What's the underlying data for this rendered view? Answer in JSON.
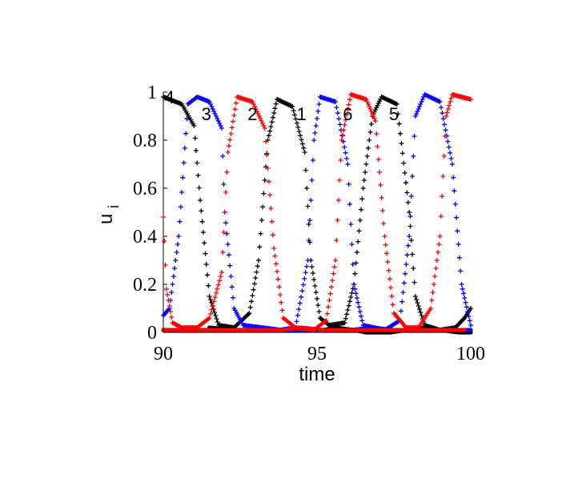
{
  "chart_data": {
    "type": "scatter",
    "xlabel": "time",
    "ylabel": "u",
    "ylabel_subscript": "i",
    "xlim": [
      90,
      100
    ],
    "ylim": [
      0,
      1
    ],
    "xticks": [
      90,
      95,
      100
    ],
    "yticks": [
      0,
      0.2,
      0.4,
      0.6,
      0.8,
      1
    ],
    "xtick_labels": [
      "90",
      "95",
      "100"
    ],
    "ytick_labels": [
      "0",
      "0.2",
      "0.4",
      "0.6",
      "0.8",
      "1"
    ],
    "grid": false,
    "annotations": [
      {
        "text": "4",
        "x": 90.2,
        "y": 0.98
      },
      {
        "text": "3",
        "x": 91.4,
        "y": 0.91
      },
      {
        "text": "2",
        "x": 92.9,
        "y": 0.91
      },
      {
        "text": "1",
        "x": 94.5,
        "y": 0.91
      },
      {
        "text": "6",
        "x": 96.0,
        "y": 0.91
      },
      {
        "text": "5",
        "x": 97.5,
        "y": 0.91
      }
    ],
    "series": [
      {
        "color": "#000000",
        "marker": "+",
        "points": [
          [
            90.0,
            0.98
          ],
          [
            90.6,
            0.95
          ],
          [
            91.0,
            0.86
          ],
          [
            91.2,
            0.55
          ],
          [
            91.5,
            0.15
          ],
          [
            91.8,
            0.03
          ],
          [
            92.3,
            0.02
          ],
          [
            92.8,
            0.08
          ],
          [
            93.1,
            0.3
          ],
          [
            93.4,
            0.8
          ],
          [
            93.7,
            0.97
          ],
          [
            94.2,
            0.94
          ],
          [
            94.6,
            0.75
          ],
          [
            94.8,
            0.3
          ],
          [
            95.1,
            0.06
          ],
          [
            95.4,
            0.03
          ],
          [
            95.9,
            0.04
          ],
          [
            96.2,
            0.2
          ],
          [
            96.5,
            0.6
          ],
          [
            96.8,
            0.9
          ],
          [
            97.1,
            0.98
          ],
          [
            97.6,
            0.95
          ],
          [
            98.0,
            0.5
          ],
          [
            98.2,
            0.15
          ],
          [
            98.5,
            0.03
          ],
          [
            99.0,
            0.01
          ],
          [
            99.5,
            0.02
          ],
          [
            99.8,
            0.06
          ],
          [
            100.0,
            0.1
          ]
        ]
      },
      {
        "color": "#000000",
        "marker": "*",
        "points": [
          [
            91.5,
            0.02
          ],
          [
            92.3,
            0.01
          ],
          [
            92.9,
            0.01
          ],
          [
            93.6,
            0.01
          ],
          [
            94.2,
            0.01
          ],
          [
            94.6,
            0.01
          ],
          [
            95.2,
            0.01
          ],
          [
            95.6,
            0.02
          ],
          [
            96.2,
            0.01
          ],
          [
            96.6,
            0.0
          ],
          [
            97.4,
            0.0
          ],
          [
            97.9,
            0.01
          ],
          [
            98.6,
            0.02
          ],
          [
            99.0,
            0.01
          ],
          [
            99.6,
            0.0
          ],
          [
            100.0,
            0.0
          ]
        ]
      },
      {
        "color": "#0000ff",
        "marker": "+",
        "points": [
          [
            90.0,
            0.07
          ],
          [
            90.2,
            0.1
          ],
          [
            90.5,
            0.4
          ],
          [
            90.8,
            0.95
          ],
          [
            91.1,
            0.98
          ],
          [
            91.5,
            0.96
          ],
          [
            91.9,
            0.85
          ],
          [
            92.0,
            0.5
          ],
          [
            92.3,
            0.1
          ],
          [
            92.6,
            0.03
          ],
          [
            93.2,
            0.02
          ],
          [
            93.8,
            0.01
          ],
          [
            94.3,
            0.02
          ],
          [
            94.7,
            0.3
          ],
          [
            94.9,
            0.8
          ],
          [
            95.1,
            0.98
          ],
          [
            95.6,
            0.96
          ],
          [
            96.0,
            0.7
          ],
          [
            96.2,
            0.2
          ],
          [
            96.5,
            0.03
          ],
          [
            97.2,
            0.01
          ],
          [
            97.7,
            0.05
          ],
          [
            98.0,
            0.4
          ],
          [
            98.2,
            0.9
          ],
          [
            98.5,
            0.99
          ],
          [
            99.0,
            0.96
          ],
          [
            99.4,
            0.7
          ],
          [
            99.7,
            0.2
          ],
          [
            100.0,
            0.03
          ]
        ]
      },
      {
        "color": "#0000ff",
        "marker": "*",
        "points": [
          [
            90.0,
            0.01
          ],
          [
            90.8,
            0.01
          ],
          [
            91.5,
            0.01
          ],
          [
            92.2,
            0.01
          ],
          [
            92.9,
            0.01
          ],
          [
            93.5,
            0.01
          ],
          [
            94.1,
            0.01
          ],
          [
            94.7,
            0.01
          ],
          [
            95.4,
            0.01
          ],
          [
            96.1,
            0.01
          ],
          [
            96.8,
            0.02
          ],
          [
            97.5,
            0.01
          ],
          [
            98.1,
            0.01
          ],
          [
            98.8,
            0.01
          ],
          [
            99.4,
            0.01
          ],
          [
            100.0,
            0.01
          ]
        ]
      },
      {
        "color": "#ff0000",
        "marker": "+",
        "points": [
          [
            90.0,
            0.48
          ],
          [
            90.1,
            0.18
          ],
          [
            90.3,
            0.04
          ],
          [
            90.6,
            0.02
          ],
          [
            91.1,
            0.02
          ],
          [
            91.5,
            0.06
          ],
          [
            91.9,
            0.25
          ],
          [
            92.1,
            0.75
          ],
          [
            92.4,
            0.98
          ],
          [
            92.9,
            0.96
          ],
          [
            93.3,
            0.85
          ],
          [
            93.6,
            0.35
          ],
          [
            93.9,
            0.06
          ],
          [
            94.3,
            0.02
          ],
          [
            94.9,
            0.01
          ],
          [
            95.3,
            0.05
          ],
          [
            95.6,
            0.3
          ],
          [
            95.8,
            0.8
          ],
          [
            96.1,
            0.99
          ],
          [
            96.6,
            0.97
          ],
          [
            96.9,
            0.88
          ],
          [
            97.2,
            0.4
          ],
          [
            97.5,
            0.08
          ],
          [
            97.9,
            0.02
          ],
          [
            98.3,
            0.02
          ],
          [
            98.7,
            0.1
          ],
          [
            99.0,
            0.4
          ],
          [
            99.2,
            0.9
          ],
          [
            99.4,
            0.99
          ],
          [
            99.7,
            0.98
          ],
          [
            100.0,
            0.97
          ]
        ]
      },
      {
        "color": "#ff0000",
        "marker": "*",
        "points": [
          [
            90.0,
            0.01
          ],
          [
            90.6,
            0.01
          ],
          [
            91.3,
            0.01
          ],
          [
            92.0,
            0.01
          ],
          [
            92.7,
            0.01
          ],
          [
            93.3,
            0.01
          ],
          [
            93.9,
            0.01
          ],
          [
            94.5,
            0.02
          ],
          [
            95.2,
            0.01
          ],
          [
            95.8,
            0.01
          ],
          [
            96.4,
            0.01
          ],
          [
            97.1,
            0.01
          ],
          [
            97.7,
            0.01
          ],
          [
            98.4,
            0.01
          ],
          [
            99.1,
            0.01
          ],
          [
            99.8,
            0.01
          ]
        ]
      }
    ]
  }
}
